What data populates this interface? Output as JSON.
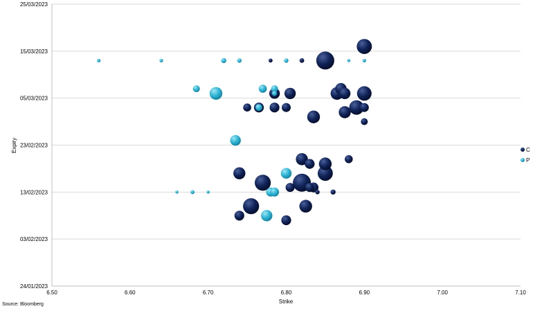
{
  "chart_data": {
    "type": "scatter",
    "marker": "bubble",
    "xlabel": "Strike",
    "ylabel": "Expiry",
    "xlim": [
      6.5,
      7.1
    ],
    "ylim": [
      "2023-01-24",
      "2023-03-25"
    ],
    "x_ticks": [
      "6.50",
      "6.60",
      "6.70",
      "6.80",
      "6.90",
      "7.00",
      "7.10"
    ],
    "y_ticks": [
      "24/01/2023",
      "03/02/2023",
      "13/02/2023",
      "23/02/2023",
      "05/03/2023",
      "15/03/2023",
      "25/03/2023"
    ],
    "grid": "horizontal",
    "legend_position": "right",
    "colors": {
      "C": "#0b1d4d",
      "P": "#29b5d4"
    },
    "series": [
      {
        "name": "C",
        "points": [
          {
            "x": 6.9,
            "y": "2023-03-16",
            "size": 7
          },
          {
            "x": 6.85,
            "y": "2023-03-13",
            "size": 10
          },
          {
            "x": 6.78,
            "y": "2023-03-13",
            "size": 0.5
          },
          {
            "x": 6.82,
            "y": "2023-03-13",
            "size": 0.7
          },
          {
            "x": 6.87,
            "y": "2023-03-07",
            "size": 4
          },
          {
            "x": 6.865,
            "y": "2023-03-06",
            "size": 5
          },
          {
            "x": 6.875,
            "y": "2023-03-06",
            "size": 4
          },
          {
            "x": 6.9,
            "y": "2023-03-06",
            "size": 6.5
          },
          {
            "x": 6.805,
            "y": "2023-03-06",
            "size": 4
          },
          {
            "x": 6.785,
            "y": "2023-03-06",
            "size": 3.5
          },
          {
            "x": 6.75,
            "y": "2023-03-03",
            "size": 2
          },
          {
            "x": 6.765,
            "y": "2023-03-03",
            "size": 3
          },
          {
            "x": 6.785,
            "y": "2023-03-03",
            "size": 3
          },
          {
            "x": 6.8,
            "y": "2023-03-03",
            "size": 2.5
          },
          {
            "x": 6.89,
            "y": "2023-03-03",
            "size": 6.5
          },
          {
            "x": 6.9,
            "y": "2023-03-03",
            "size": 2.5
          },
          {
            "x": 6.875,
            "y": "2023-03-02",
            "size": 4.5
          },
          {
            "x": 6.835,
            "y": "2023-03-01",
            "size": 5
          },
          {
            "x": 6.9,
            "y": "2023-02-28",
            "size": 1.5
          },
          {
            "x": 6.82,
            "y": "2023-02-20",
            "size": 4.5
          },
          {
            "x": 6.83,
            "y": "2023-02-19",
            "size": 3
          },
          {
            "x": 6.85,
            "y": "2023-02-19",
            "size": 5
          },
          {
            "x": 6.88,
            "y": "2023-02-20",
            "size": 2
          },
          {
            "x": 6.74,
            "y": "2023-02-17",
            "size": 4.5
          },
          {
            "x": 6.85,
            "y": "2023-02-17",
            "size": 7
          },
          {
            "x": 6.77,
            "y": "2023-02-15",
            "size": 8
          },
          {
            "x": 6.82,
            "y": "2023-02-15",
            "size": 10
          },
          {
            "x": 6.805,
            "y": "2023-02-14",
            "size": 2.5
          },
          {
            "x": 6.83,
            "y": "2023-02-14",
            "size": 2.5
          },
          {
            "x": 6.835,
            "y": "2023-02-14",
            "size": 3
          },
          {
            "x": 6.84,
            "y": "2023-02-13",
            "size": 0.6
          },
          {
            "x": 6.86,
            "y": "2023-02-13",
            "size": 0.8
          },
          {
            "x": 6.755,
            "y": "2023-02-10",
            "size": 8
          },
          {
            "x": 6.825,
            "y": "2023-02-10",
            "size": 5
          },
          {
            "x": 6.74,
            "y": "2023-02-08",
            "size": 3
          },
          {
            "x": 6.8,
            "y": "2023-02-07",
            "size": 3
          }
        ]
      },
      {
        "name": "P",
        "points": [
          {
            "x": 6.56,
            "y": "2023-03-13",
            "size": 0.4
          },
          {
            "x": 6.64,
            "y": "2023-03-13",
            "size": 0.4
          },
          {
            "x": 6.72,
            "y": "2023-03-13",
            "size": 0.8
          },
          {
            "x": 6.74,
            "y": "2023-03-13",
            "size": 0.6
          },
          {
            "x": 6.8,
            "y": "2023-03-13",
            "size": 0.6
          },
          {
            "x": 6.88,
            "y": "2023-03-13",
            "size": 0.3
          },
          {
            "x": 6.9,
            "y": "2023-03-13",
            "size": 0.4
          },
          {
            "x": 6.685,
            "y": "2023-03-07",
            "size": 1.5
          },
          {
            "x": 6.77,
            "y": "2023-03-07",
            "size": 2
          },
          {
            "x": 6.785,
            "y": "2023-03-07",
            "size": 1.5
          },
          {
            "x": 6.71,
            "y": "2023-03-06",
            "size": 5
          },
          {
            "x": 6.785,
            "y": "2023-03-06",
            "size": 0.8
          },
          {
            "x": 6.765,
            "y": "2023-03-03",
            "size": 1.5
          },
          {
            "x": 6.735,
            "y": "2023-02-24",
            "size": 3.5
          },
          {
            "x": 6.8,
            "y": "2023-02-17",
            "size": 3.5
          },
          {
            "x": 6.66,
            "y": "2023-02-13",
            "size": 0.3
          },
          {
            "x": 6.68,
            "y": "2023-02-13",
            "size": 0.5
          },
          {
            "x": 6.7,
            "y": "2023-02-13",
            "size": 0.3
          },
          {
            "x": 6.78,
            "y": "2023-02-13",
            "size": 2.5
          },
          {
            "x": 6.785,
            "y": "2023-02-13",
            "size": 2.5
          },
          {
            "x": 6.775,
            "y": "2023-02-08",
            "size": 4
          }
        ]
      }
    ]
  },
  "footer": {
    "source": "Source: Bloomberg"
  }
}
